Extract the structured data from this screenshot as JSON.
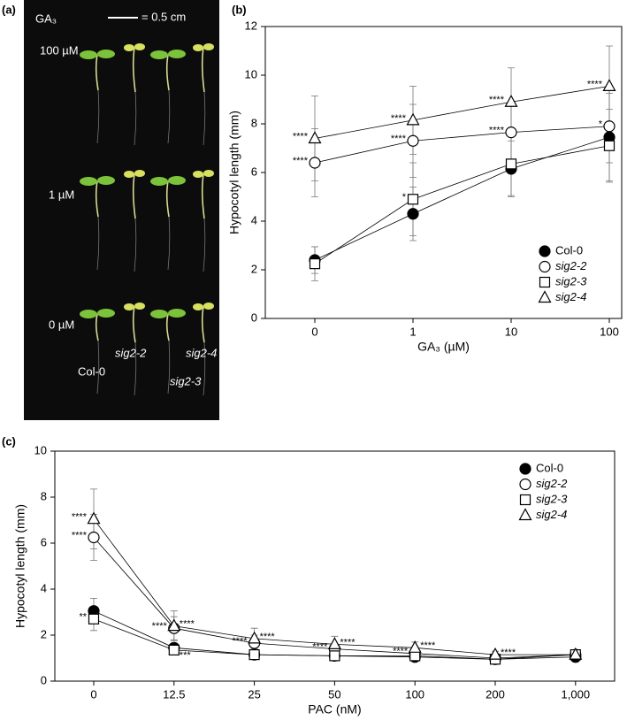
{
  "photo_panel": {
    "panel_label": "(a)",
    "treatment": "GA₃",
    "scale_bar": "= 0.5 cm",
    "rows": [
      "100 µM",
      "1 µM",
      "0 µM"
    ],
    "genotypes": [
      "Col-0",
      "sig2-2",
      "sig2-3",
      "sig2-4"
    ]
  },
  "chart_data": [
    {
      "type": "line",
      "panel_label": "(b)",
      "x_label": "GA₃ (µM)",
      "y_label": "Hypocotyl length (mm)",
      "categories": [
        "0",
        "1",
        "10",
        "100"
      ],
      "ylim": [
        0,
        12
      ],
      "yticks": [
        0,
        2,
        4,
        6,
        8,
        10,
        12
      ],
      "grid": false,
      "legend": "lower right",
      "series": [
        {
          "name": "Col-0",
          "color": "#000000",
          "marker": "circle",
          "marker_fill": "#000000",
          "values": [
            2.4,
            4.3,
            6.15,
            7.45
          ],
          "errors": [
            0.55,
            1.1,
            1.15,
            1.8
          ],
          "significance": [
            null,
            null,
            null,
            null
          ]
        },
        {
          "name": "sig2-2",
          "color": "#000000",
          "marker": "circle",
          "marker_fill": "#ffffff",
          "values": [
            6.4,
            7.3,
            7.65,
            7.9
          ],
          "errors": [
            1.4,
            1.5,
            1.2,
            1.5
          ],
          "significance": [
            "****",
            "****",
            "****",
            "*"
          ]
        },
        {
          "name": "sig2-3",
          "color": "#000000",
          "marker": "square",
          "marker_fill": "#ffffff",
          "values": [
            2.25,
            4.9,
            6.35,
            7.1
          ],
          "errors": [
            0.7,
            1.5,
            1.3,
            1.5
          ],
          "significance": [
            null,
            "*",
            null,
            null
          ]
        },
        {
          "name": "sig2-4",
          "color": "#000000",
          "marker": "triangle",
          "marker_fill": "#ffffff",
          "values": [
            7.4,
            8.15,
            8.9,
            9.55
          ],
          "errors": [
            1.75,
            1.4,
            1.4,
            1.65
          ],
          "significance": [
            "****",
            "****",
            "****",
            "****"
          ]
        }
      ]
    },
    {
      "type": "line",
      "panel_label": "(c)",
      "x_label": "PAC (nM)",
      "y_label": "Hypocotyl length (mm)",
      "categories": [
        "0",
        "12.5",
        "25",
        "50",
        "100",
        "200",
        "1,000"
      ],
      "ylim": [
        0,
        10
      ],
      "yticks": [
        0,
        2,
        4,
        6,
        8,
        10
      ],
      "grid": false,
      "legend": "upper right",
      "series": [
        {
          "name": "Col-0",
          "color": "#000000",
          "marker": "circle",
          "marker_fill": "#000000",
          "values": [
            3.05,
            1.45,
            1.15,
            1.1,
            1.05,
            0.95,
            1.05
          ],
          "errors": [
            0.55,
            0.2,
            0.15,
            0.12,
            0.1,
            0.1,
            0.1
          ],
          "significance": [
            null,
            null,
            null,
            null,
            null,
            null,
            null
          ]
        },
        {
          "name": "sig2-2",
          "color": "#000000",
          "marker": "circle",
          "marker_fill": "#ffffff",
          "values": [
            6.25,
            2.3,
            1.65,
            1.4,
            1.2,
            1.0,
            1.15
          ],
          "errors": [
            1.0,
            0.5,
            0.35,
            0.25,
            0.2,
            0.12,
            0.1
          ],
          "significance": [
            "****",
            "****",
            "****",
            "****",
            "****",
            null,
            null
          ]
        },
        {
          "name": "sig2-3",
          "color": "#000000",
          "marker": "square",
          "marker_fill": "#ffffff",
          "values": [
            2.7,
            1.35,
            1.15,
            1.1,
            1.1,
            0.95,
            1.15
          ],
          "errors": [
            0.5,
            0.2,
            0.15,
            0.12,
            0.1,
            0.1,
            0.1
          ],
          "significance": [
            "**",
            "***",
            null,
            null,
            null,
            null,
            null
          ]
        },
        {
          "name": "sig2-4",
          "color": "#000000",
          "marker": "triangle",
          "marker_fill": "#ffffff",
          "values": [
            7.05,
            2.4,
            1.85,
            1.6,
            1.45,
            1.15,
            1.15
          ],
          "errors": [
            1.3,
            0.65,
            0.45,
            0.35,
            0.25,
            0.15,
            0.1
          ],
          "significance": [
            "****",
            "****",
            "****",
            "****",
            "****",
            "****",
            null
          ]
        }
      ]
    }
  ]
}
